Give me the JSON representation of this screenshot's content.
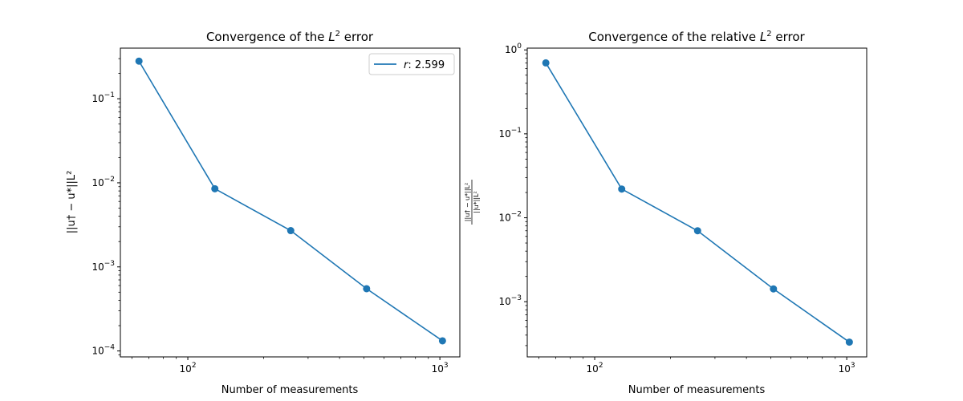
{
  "chart_data": [
    {
      "type": "line",
      "title_prefix": "Convergence of the ",
      "title_math": "L",
      "title_sup": "2",
      "title_suffix": " error",
      "xlabel": "Number of measurements",
      "ylabel": "||u† − u*||L²",
      "xscale": "log",
      "yscale": "log",
      "xlim": [
        54,
        1200
      ],
      "ylim": [
        8.5e-05,
        0.4
      ],
      "x_ticks": [
        {
          "value": 100,
          "base": "10",
          "exp": "2"
        },
        {
          "value": 1000,
          "base": "10",
          "exp": "3"
        }
      ],
      "y_ticks": [
        {
          "value": 0.0001,
          "base": "10",
          "exp": "−4"
        },
        {
          "value": 0.001,
          "base": "10",
          "exp": "−3"
        },
        {
          "value": 0.01,
          "base": "10",
          "exp": "−2"
        },
        {
          "value": 0.1,
          "base": "10",
          "exp": "−1"
        }
      ],
      "legend": {
        "position": "top-right",
        "label_math": "r",
        "label_value": ": 2.599"
      },
      "color": "#1f77b4",
      "series": [
        {
          "x": [
            64,
            128,
            256,
            512,
            1024
          ],
          "y": [
            0.28,
            0.0085,
            0.0027,
            0.00055,
            0.000132
          ]
        }
      ]
    },
    {
      "type": "line",
      "title_prefix": "Convergence of the relative ",
      "title_math": "L",
      "title_sup": "2",
      "title_suffix": " error",
      "xlabel": "Number of measurements",
      "ylabel_num": "||u† − u*||L²",
      "ylabel_den": "||u*||L²",
      "xscale": "log",
      "yscale": "log",
      "xlim": [
        54,
        1200
      ],
      "ylim": [
        0.00022,
        1.05
      ],
      "x_ticks": [
        {
          "value": 100,
          "base": "10",
          "exp": "2"
        },
        {
          "value": 1000,
          "base": "10",
          "exp": "3"
        }
      ],
      "y_ticks": [
        {
          "value": 0.001,
          "base": "10",
          "exp": "−3"
        },
        {
          "value": 0.01,
          "base": "10",
          "exp": "−2"
        },
        {
          "value": 0.1,
          "base": "10",
          "exp": "−1"
        },
        {
          "value": 1,
          "base": "10",
          "exp": "0"
        }
      ],
      "color": "#1f77b4",
      "series": [
        {
          "x": [
            64,
            128,
            256,
            512,
            1024
          ],
          "y": [
            0.7,
            0.022,
            0.007,
            0.00142,
            0.00033
          ]
        }
      ]
    }
  ]
}
